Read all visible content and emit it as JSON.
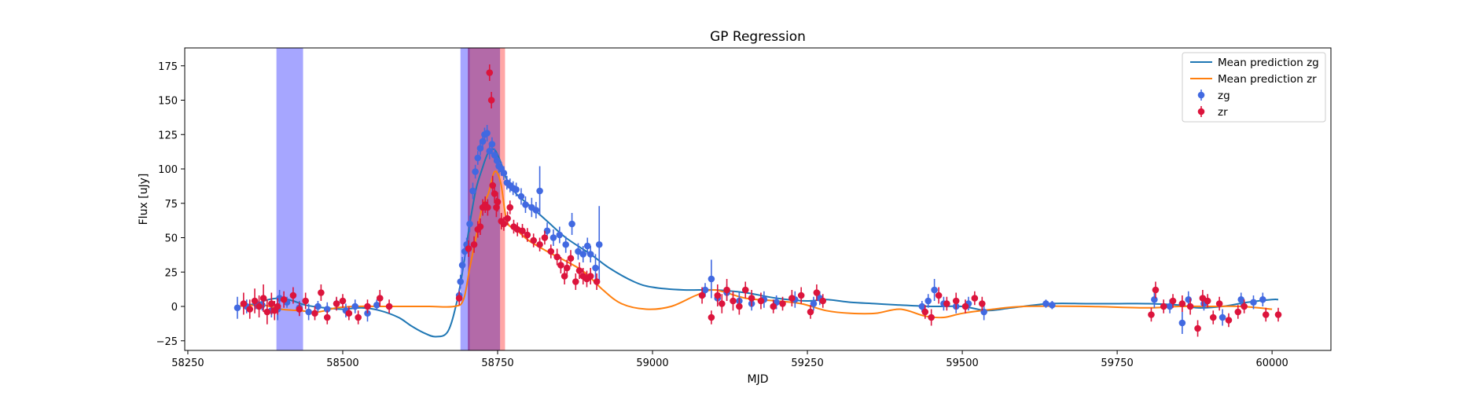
{
  "chart_data": {
    "type": "scatter",
    "title": "GP Regression",
    "xlabel": "MJD",
    "ylabel": "Flux [uJy]",
    "xlim": [
      58245,
      60095
    ],
    "ylim": [
      -32,
      188
    ],
    "xticks": [
      58250,
      58500,
      58750,
      59000,
      59250,
      59500,
      59750,
      60000
    ],
    "yticks": [
      -25,
      0,
      25,
      50,
      75,
      100,
      125,
      150,
      175
    ],
    "legend_position": "top-right",
    "colors": {
      "zg": "#4169e1",
      "zr": "#dc143c",
      "mean_zg": "#1f77b4",
      "mean_zr": "#ff7f0e"
    },
    "bands": [
      {
        "x0": 58393,
        "x1": 58436,
        "color": "#0000ff",
        "opacity": 0.35
      },
      {
        "x0": 58690,
        "x1": 58705,
        "color": "#0000ff",
        "opacity": 0.35
      },
      {
        "x0": 58702,
        "x1": 58754,
        "color": "#8b1a7a",
        "opacity": 0.65
      },
      {
        "x0": 58754,
        "x1": 58762,
        "color": "#ff0000",
        "opacity": 0.35
      }
    ],
    "series": [
      {
        "name": "Mean prediction zg",
        "kind": "line",
        "x": [
          58330,
          58360,
          58380,
          58400,
          58420,
          58440,
          58470,
          58500,
          58530,
          58560,
          58590,
          58610,
          58630,
          58650,
          58670,
          58685,
          58695,
          58705,
          58715,
          58725,
          58735,
          58745,
          58755,
          58765,
          58780,
          58800,
          58830,
          58860,
          58900,
          58930,
          58970,
          59000,
          59050,
          59100,
          59150,
          59200,
          59250,
          59280,
          59320,
          59360,
          59400,
          59450,
          59500,
          59540,
          59580,
          59640,
          59700,
          59750,
          59800,
          59850,
          59880,
          59920,
          59960,
          60000,
          60010
        ],
        "y": [
          0,
          2,
          5,
          6,
          4,
          1,
          -1,
          -2,
          -1,
          -3,
          -8,
          -14,
          -19,
          -22,
          -18,
          5,
          30,
          60,
          85,
          100,
          112,
          114,
          105,
          92,
          82,
          74,
          62,
          50,
          38,
          28,
          18,
          14,
          12,
          12,
          10,
          6,
          4,
          5,
          3,
          2,
          1,
          0,
          0,
          -3,
          -1,
          2,
          2,
          2,
          2,
          1,
          -1,
          0,
          3,
          5,
          5
        ]
      },
      {
        "name": "Mean prediction zr",
        "kind": "line",
        "x": [
          58330,
          58370,
          58400,
          58430,
          58460,
          58490,
          58520,
          58560,
          58600,
          58640,
          58680,
          58695,
          58705,
          58715,
          58725,
          58735,
          58745,
          58755,
          58765,
          58780,
          58800,
          58830,
          58860,
          58890,
          58920,
          58950,
          58990,
          59030,
          59070,
          59100,
          59150,
          59200,
          59240,
          59280,
          59320,
          59360,
          59400,
          59440,
          59470,
          59500,
          59550,
          59600,
          59700,
          59800,
          59850,
          59900,
          59950,
          60000
        ],
        "y": [
          0,
          1,
          -2,
          -3,
          -4,
          -1,
          0,
          0,
          0,
          0,
          0,
          5,
          28,
          50,
          72,
          82,
          98,
          90,
          62,
          56,
          48,
          40,
          33,
          25,
          12,
          2,
          -2,
          0,
          8,
          12,
          6,
          4,
          2,
          -3,
          -5,
          -5,
          -2,
          -7,
          -8,
          -5,
          -2,
          0,
          0,
          -1,
          0,
          0,
          0,
          -2
        ]
      },
      {
        "name": "zg",
        "kind": "errorbar",
        "points": [
          [
            58330,
            -1,
            8
          ],
          [
            58345,
            0,
            5
          ],
          [
            58360,
            2,
            4
          ],
          [
            58370,
            1,
            4
          ],
          [
            58385,
            -3,
            5
          ],
          [
            58395,
            -2,
            8
          ],
          [
            58398,
            6,
            6
          ],
          [
            58410,
            3,
            4
          ],
          [
            58430,
            -1,
            5
          ],
          [
            58445,
            -4,
            6
          ],
          [
            58460,
            0,
            4
          ],
          [
            58475,
            -2,
            5
          ],
          [
            58490,
            2,
            4
          ],
          [
            58505,
            -3,
            5
          ],
          [
            58520,
            0,
            5
          ],
          [
            58540,
            -5,
            6
          ],
          [
            58555,
            1,
            4
          ],
          [
            58688,
            8,
            5
          ],
          [
            58690,
            18,
            5
          ],
          [
            58693,
            30,
            6
          ],
          [
            58697,
            40,
            6
          ],
          [
            58700,
            45,
            5
          ],
          [
            58705,
            60,
            6
          ],
          [
            58710,
            84,
            6
          ],
          [
            58714,
            98,
            5
          ],
          [
            58718,
            108,
            5
          ],
          [
            58722,
            115,
            5
          ],
          [
            58726,
            120,
            5
          ],
          [
            58729,
            125,
            5
          ],
          [
            58733,
            126,
            6
          ],
          [
            58737,
            113,
            6
          ],
          [
            58741,
            118,
            5
          ],
          [
            58745,
            110,
            5
          ],
          [
            58749,
            106,
            5
          ],
          [
            58752,
            102,
            5
          ],
          [
            58756,
            100,
            5
          ],
          [
            58760,
            97,
            5
          ],
          [
            58765,
            90,
            5
          ],
          [
            58770,
            88,
            5
          ],
          [
            58775,
            86,
            5
          ],
          [
            58780,
            85,
            5
          ],
          [
            58788,
            80,
            6
          ],
          [
            58795,
            74,
            6
          ],
          [
            58805,
            72,
            7
          ],
          [
            58812,
            70,
            6
          ],
          [
            58818,
            84,
            18
          ],
          [
            58830,
            55,
            6
          ],
          [
            58840,
            50,
            6
          ],
          [
            58850,
            52,
            6
          ],
          [
            58860,
            45,
            6
          ],
          [
            58870,
            60,
            8
          ],
          [
            58880,
            40,
            6
          ],
          [
            58888,
            38,
            6
          ],
          [
            58895,
            44,
            6
          ],
          [
            58900,
            38,
            6
          ],
          [
            58908,
            28,
            10
          ],
          [
            58914,
            45,
            28
          ],
          [
            59085,
            12,
            5
          ],
          [
            59095,
            20,
            14
          ],
          [
            59105,
            6,
            6
          ],
          [
            59120,
            10,
            6
          ],
          [
            59140,
            4,
            6
          ],
          [
            59160,
            2,
            5
          ],
          [
            59180,
            5,
            6
          ],
          [
            59200,
            3,
            5
          ],
          [
            59230,
            5,
            6
          ],
          [
            59260,
            2,
            5
          ],
          [
            59270,
            6,
            5
          ],
          [
            59435,
            0,
            4
          ],
          [
            59445,
            4,
            5
          ],
          [
            59455,
            12,
            8
          ],
          [
            59470,
            2,
            5
          ],
          [
            59490,
            0,
            5
          ],
          [
            59510,
            2,
            5
          ],
          [
            59535,
            -4,
            6
          ],
          [
            59635,
            2,
            3
          ],
          [
            59645,
            1,
            3
          ],
          [
            59810,
            5,
            6
          ],
          [
            59835,
            0,
            5
          ],
          [
            59855,
            -12,
            8
          ],
          [
            59865,
            5,
            6
          ],
          [
            59890,
            2,
            5
          ],
          [
            59920,
            -8,
            6
          ],
          [
            59950,
            5,
            5
          ],
          [
            59970,
            3,
            5
          ],
          [
            59985,
            5,
            5
          ]
        ]
      },
      {
        "name": "zr",
        "kind": "errorbar",
        "points": [
          [
            58340,
            2,
            8
          ],
          [
            58350,
            -2,
            7
          ],
          [
            58358,
            4,
            9
          ],
          [
            58365,
            0,
            8
          ],
          [
            58372,
            6,
            10
          ],
          [
            58378,
            -4,
            9
          ],
          [
            58385,
            2,
            8
          ],
          [
            58390,
            -3,
            7
          ],
          [
            58395,
            0,
            6
          ],
          [
            58405,
            5,
            6
          ],
          [
            58420,
            8,
            6
          ],
          [
            58430,
            -2,
            5
          ],
          [
            58440,
            4,
            6
          ],
          [
            58455,
            -5,
            5
          ],
          [
            58465,
            10,
            6
          ],
          [
            58475,
            -8,
            5
          ],
          [
            58490,
            2,
            5
          ],
          [
            58500,
            4,
            5
          ],
          [
            58510,
            -5,
            5
          ],
          [
            58525,
            -8,
            5
          ],
          [
            58540,
            0,
            5
          ],
          [
            58560,
            6,
            6
          ],
          [
            58575,
            0,
            5
          ],
          [
            58688,
            6,
            5
          ],
          [
            58703,
            42,
            6
          ],
          [
            58712,
            45,
            6
          ],
          [
            58718,
            56,
            6
          ],
          [
            58722,
            58,
            6
          ],
          [
            58726,
            72,
            6
          ],
          [
            58730,
            74,
            6
          ],
          [
            58734,
            72,
            6
          ],
          [
            58737,
            170,
            6
          ],
          [
            58740,
            150,
            6
          ],
          [
            58742,
            88,
            7
          ],
          [
            58745,
            82,
            7
          ],
          [
            58748,
            72,
            7
          ],
          [
            58750,
            76,
            7
          ],
          [
            58756,
            62,
            6
          ],
          [
            58760,
            60,
            5
          ],
          [
            58766,
            64,
            5
          ],
          [
            58770,
            72,
            5
          ],
          [
            58776,
            58,
            5
          ],
          [
            58782,
            56,
            5
          ],
          [
            58790,
            55,
            5
          ],
          [
            58798,
            52,
            5
          ],
          [
            58808,
            48,
            5
          ],
          [
            58818,
            45,
            5
          ],
          [
            58826,
            50,
            5
          ],
          [
            58836,
            40,
            5
          ],
          [
            58846,
            36,
            6
          ],
          [
            58852,
            30,
            6
          ],
          [
            58858,
            22,
            6
          ],
          [
            58862,
            28,
            6
          ],
          [
            58868,
            35,
            6
          ],
          [
            58876,
            18,
            6
          ],
          [
            58882,
            26,
            6
          ],
          [
            58888,
            22,
            6
          ],
          [
            58894,
            20,
            6
          ],
          [
            58900,
            22,
            6
          ],
          [
            58910,
            18,
            6
          ],
          [
            59080,
            8,
            6
          ],
          [
            59095,
            -8,
            5
          ],
          [
            59105,
            8,
            8
          ],
          [
            59112,
            2,
            7
          ],
          [
            59120,
            12,
            8
          ],
          [
            59130,
            4,
            7
          ],
          [
            59140,
            0,
            6
          ],
          [
            59150,
            12,
            6
          ],
          [
            59160,
            6,
            6
          ],
          [
            59175,
            4,
            6
          ],
          [
            59195,
            0,
            5
          ],
          [
            59210,
            2,
            5
          ],
          [
            59225,
            6,
            6
          ],
          [
            59240,
            8,
            6
          ],
          [
            59255,
            -4,
            5
          ],
          [
            59265,
            10,
            6
          ],
          [
            59275,
            4,
            5
          ],
          [
            59440,
            -4,
            5
          ],
          [
            59450,
            -8,
            6
          ],
          [
            59462,
            8,
            6
          ],
          [
            59475,
            2,
            5
          ],
          [
            59490,
            4,
            6
          ],
          [
            59505,
            0,
            5
          ],
          [
            59520,
            6,
            5
          ],
          [
            59532,
            2,
            5
          ],
          [
            59805,
            -6,
            5
          ],
          [
            59812,
            12,
            6
          ],
          [
            59825,
            0,
            5
          ],
          [
            59840,
            4,
            5
          ],
          [
            59855,
            2,
            6
          ],
          [
            59868,
            0,
            6
          ],
          [
            59880,
            -16,
            6
          ],
          [
            59888,
            6,
            6
          ],
          [
            59896,
            4,
            5
          ],
          [
            59905,
            -8,
            5
          ],
          [
            59915,
            2,
            5
          ],
          [
            59930,
            -10,
            5
          ],
          [
            59945,
            -4,
            5
          ],
          [
            59955,
            0,
            5
          ],
          [
            59990,
            -6,
            5
          ],
          [
            60010,
            -6,
            5
          ]
        ]
      }
    ],
    "legend": [
      {
        "label": "Mean prediction zg",
        "kind": "line",
        "color": "#1f77b4"
      },
      {
        "label": "Mean prediction zr",
        "kind": "line",
        "color": "#ff7f0e"
      },
      {
        "label": "zg",
        "kind": "errorbar",
        "color": "#4169e1"
      },
      {
        "label": "zr",
        "kind": "errorbar",
        "color": "#dc143c"
      }
    ]
  }
}
